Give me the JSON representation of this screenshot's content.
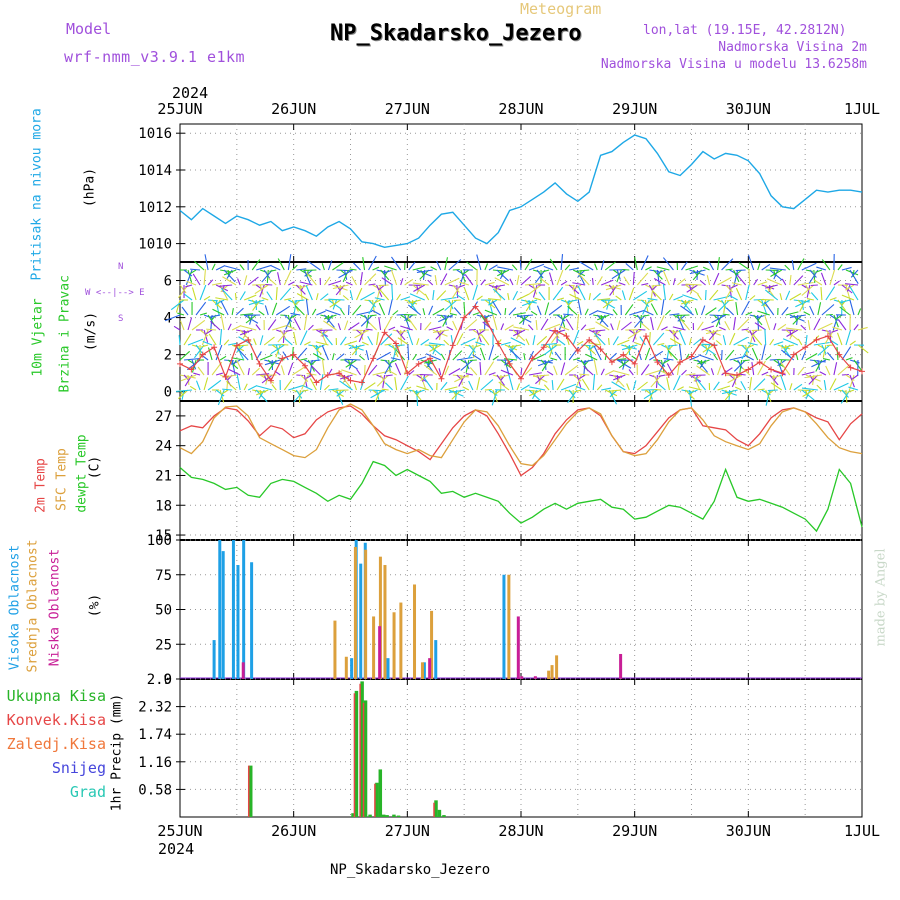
{
  "header": {
    "model_label": "Model",
    "model_name": "wrf-nmm_v3.9.1 e1km",
    "meteogram_label": "Meteogram",
    "station_title": "NP_Skadarsko_Jezero",
    "lonlat": "lon,lat (19.15E, 42.2812N)",
    "elevation": "Nadmorska Visina 2m",
    "model_elevation": "Nadmorska Visina u modelu 13.6258m",
    "year_top": "2024",
    "year_bottom": "2024",
    "footer_station": "NP_Skadarsko_Jezero",
    "credit": "made by Angel"
  },
  "colors": {
    "pressure": "#1ea8e6",
    "temp2m": "#e64646",
    "sfc_temp": "#dca03c",
    "dewpoint": "#28c828",
    "high_cloud": "#1ea0e6",
    "mid_cloud": "#dca03c",
    "low_cloud": "#c81e96",
    "total_precip": "#28b428",
    "conv_precip": "#e64646",
    "frozen": "#f0783c",
    "snow": "#4646dc",
    "hail": "#28c8b4",
    "purple_text": "#a050dc",
    "wind_speed": "#e64646"
  },
  "panel_labels": {
    "pressure": [
      "Pritisak na nivou mora",
      "(hPa)"
    ],
    "wind": [
      "10m Vjetar",
      "Brzina i Pravac",
      "(m/s)"
    ],
    "wind_compass": [
      "N",
      "W <--|--> E",
      "S"
    ],
    "temp": [
      "2m Temp",
      "SFC Temp",
      "dewpt Temp",
      "(C)"
    ],
    "cloud": [
      "Visoka Oblacnost",
      "Srednja Oblacnost",
      "Niska Oblacnost",
      "(%)"
    ],
    "precip_legend": [
      "Ukupna Kisa",
      "Konvek.Kisa",
      "Zaledj.Kisa",
      "Snijeg",
      "Grad"
    ],
    "precip_unit": "1hr Precip (mm)"
  },
  "chart_data": [
    {
      "type": "line",
      "name": "pressure",
      "x_ticks": [
        "25JUN",
        "26JUN",
        "27JUN",
        "28JUN",
        "29JUN",
        "30JUN",
        "1JUL"
      ],
      "ylabel": "(hPa)",
      "ylim": [
        1009,
        1016.5
      ],
      "y_ticks": [
        1010,
        1012,
        1014,
        1016
      ],
      "grid": true,
      "x": [
        0,
        0.1,
        0.2,
        0.3,
        0.4,
        0.5,
        0.6,
        0.7,
        0.8,
        0.9,
        1.0,
        1.1,
        1.2,
        1.3,
        1.4,
        1.5,
        1.6,
        1.7,
        1.8,
        1.9,
        2.0,
        2.1,
        2.2,
        2.3,
        2.4,
        2.5,
        2.6,
        2.7,
        2.8,
        2.9,
        3.0,
        3.1,
        3.2,
        3.3,
        3.4,
        3.5,
        3.6,
        3.7,
        3.8,
        3.9,
        4.0,
        4.1,
        4.2,
        4.3,
        4.4,
        4.5,
        4.6,
        4.7,
        4.8,
        4.9,
        5.0,
        5.1,
        5.2,
        5.3,
        5.4,
        5.5,
        5.6,
        5.7,
        5.8,
        5.9,
        6.0
      ],
      "values": [
        1011.8,
        1011.3,
        1011.9,
        1011.5,
        1011.1,
        1011.5,
        1011.3,
        1011.0,
        1011.2,
        1010.7,
        1010.9,
        1010.7,
        1010.4,
        1010.9,
        1011.2,
        1010.8,
        1010.1,
        1010.0,
        1009.8,
        1009.9,
        1010.0,
        1010.3,
        1011.0,
        1011.6,
        1011.7,
        1011.0,
        1010.3,
        1010.0,
        1010.6,
        1011.8,
        1012.0,
        1012.4,
        1012.8,
        1013.3,
        1012.7,
        1012.3,
        1012.8,
        1014.8,
        1015.0,
        1015.5,
        1015.9,
        1015.7,
        1014.9,
        1013.9,
        1013.7,
        1014.3,
        1015.0,
        1014.6,
        1014.9,
        1014.8,
        1014.5,
        1013.8,
        1012.6,
        1012.0,
        1011.9,
        1012.4,
        1012.9,
        1012.8,
        1012.9,
        1012.9,
        1012.8
      ]
    },
    {
      "type": "line",
      "name": "wind_speed",
      "ylabel": "(m/s)",
      "ylim": [
        -0.5,
        7
      ],
      "y_ticks": [
        0,
        2,
        4,
        6
      ],
      "grid": true,
      "x": [
        0,
        0.1,
        0.2,
        0.3,
        0.4,
        0.5,
        0.6,
        0.7,
        0.8,
        0.9,
        1.0,
        1.1,
        1.2,
        1.3,
        1.4,
        1.5,
        1.6,
        1.7,
        1.8,
        1.9,
        2.0,
        2.1,
        2.2,
        2.3,
        2.4,
        2.5,
        2.6,
        2.7,
        2.8,
        2.9,
        3.0,
        3.1,
        3.2,
        3.3,
        3.4,
        3.5,
        3.6,
        3.7,
        3.8,
        3.9,
        4.0,
        4.1,
        4.2,
        4.3,
        4.4,
        4.5,
        4.6,
        4.7,
        4.8,
        4.9,
        5.0,
        5.1,
        5.2,
        5.3,
        5.4,
        5.5,
        5.6,
        5.7,
        5.8,
        5.9,
        6.0
      ],
      "values": [
        1.5,
        1.2,
        2.0,
        2.4,
        0.8,
        2.5,
        2.8,
        1.5,
        0.6,
        1.8,
        2.0,
        1.4,
        0.5,
        0.9,
        1.0,
        0.6,
        0.5,
        1.8,
        3.2,
        2.6,
        1.0,
        1.5,
        1.8,
        0.7,
        2.5,
        4.0,
        4.6,
        3.8,
        2.6,
        1.5,
        0.7,
        1.8,
        2.4,
        3.3,
        3.0,
        2.2,
        2.8,
        2.3,
        1.6,
        2.0,
        1.5,
        3.0,
        1.6,
        0.9,
        1.6,
        1.9,
        2.8,
        2.5,
        1.0,
        0.9,
        1.2,
        1.6,
        1.2,
        1.0,
        2.0,
        2.4,
        2.8,
        3.0,
        2.0,
        1.3,
        1.1
      ]
    },
    {
      "type": "line",
      "name": "temperature",
      "ylabel": "(C)",
      "ylim": [
        14.5,
        28.5
      ],
      "y_ticks": [
        15,
        18,
        21,
        24,
        27
      ],
      "grid": true,
      "x": [
        0,
        0.1,
        0.2,
        0.3,
        0.4,
        0.5,
        0.6,
        0.7,
        0.8,
        0.9,
        1.0,
        1.1,
        1.2,
        1.3,
        1.4,
        1.5,
        1.6,
        1.7,
        1.8,
        1.9,
        2.0,
        2.1,
        2.2,
        2.3,
        2.4,
        2.5,
        2.6,
        2.7,
        2.8,
        2.9,
        3.0,
        3.1,
        3.2,
        3.3,
        3.4,
        3.5,
        3.6,
        3.7,
        3.8,
        3.9,
        4.0,
        4.1,
        4.2,
        4.3,
        4.4,
        4.5,
        4.6,
        4.7,
        4.8,
        4.9,
        5.0,
        5.1,
        5.2,
        5.3,
        5.4,
        5.5,
        5.6,
        5.7,
        5.8,
        5.9,
        6.0
      ],
      "series": [
        {
          "name": "2m Temp",
          "color_key": "temp2m",
          "values": [
            25.5,
            26.0,
            25.8,
            27.0,
            27.8,
            27.6,
            26.5,
            25.0,
            26.0,
            25.7,
            24.8,
            25.2,
            26.6,
            27.4,
            27.8,
            28.0,
            27.2,
            26.0,
            25.0,
            24.6,
            24.0,
            23.4,
            22.6,
            24.2,
            25.8,
            27.0,
            27.6,
            27.0,
            25.2,
            23.2,
            21.0,
            21.8,
            23.2,
            25.2,
            26.6,
            27.6,
            27.8,
            27.0,
            25.0,
            23.4,
            23.2,
            24.0,
            25.4,
            26.8,
            27.6,
            27.8,
            26.0,
            25.8,
            25.6,
            24.6,
            24.0,
            25.2,
            26.8,
            27.6,
            27.8,
            27.4,
            26.8,
            26.4,
            24.6,
            26.2,
            27.2
          ]
        },
        {
          "name": "SFC Temp",
          "color_key": "sfc_temp",
          "values": [
            23.8,
            23.2,
            24.4,
            26.8,
            27.9,
            28.0,
            27.0,
            24.8,
            24.2,
            23.6,
            23.0,
            22.8,
            23.6,
            25.8,
            27.6,
            28.2,
            27.6,
            26.0,
            24.2,
            23.6,
            23.2,
            23.6,
            23.0,
            22.8,
            24.6,
            26.4,
            27.6,
            27.4,
            26.0,
            24.0,
            22.2,
            22.0,
            23.0,
            24.6,
            26.2,
            27.4,
            27.8,
            27.2,
            25.0,
            23.4,
            23.0,
            23.2,
            24.6,
            26.4,
            27.6,
            27.8,
            26.6,
            25.0,
            24.4,
            24.0,
            23.6,
            24.2,
            26.0,
            27.4,
            27.8,
            27.4,
            26.2,
            24.8,
            23.8,
            23.4,
            23.2
          ]
        },
        {
          "name": "dewpt Temp",
          "color_key": "dewpoint",
          "values": [
            21.8,
            20.8,
            20.6,
            20.2,
            19.6,
            19.8,
            19.0,
            18.8,
            20.2,
            20.6,
            20.4,
            19.8,
            19.2,
            18.4,
            19.0,
            18.6,
            20.2,
            22.4,
            22.0,
            21.0,
            21.6,
            21.0,
            20.4,
            19.2,
            19.4,
            18.8,
            19.2,
            18.8,
            18.4,
            17.2,
            16.2,
            16.8,
            17.6,
            18.2,
            17.6,
            18.2,
            18.4,
            18.6,
            17.8,
            17.6,
            16.6,
            16.8,
            17.4,
            18.0,
            17.8,
            17.2,
            16.6,
            18.4,
            21.6,
            18.8,
            18.4,
            18.6,
            18.2,
            17.8,
            17.2,
            16.6,
            15.4,
            17.6,
            21.6,
            20.2,
            15.8
          ]
        }
      ]
    },
    {
      "type": "bar",
      "name": "cloud_cover",
      "ylabel": "(%)",
      "ylim": [
        0,
        100
      ],
      "y_ticks": [
        0,
        25,
        50,
        75,
        100
      ],
      "grid": true,
      "series": [
        {
          "name": "Visoka Oblacnost",
          "color_key": "high_cloud",
          "x": [
            0.3,
            0.35,
            0.38,
            0.47,
            0.51,
            0.56,
            0.63,
            1.51,
            1.55,
            1.59,
            1.63,
            1.83,
            2.15,
            2.25,
            2.85
          ],
          "values": [
            28,
            100,
            92,
            100,
            82,
            100,
            84,
            15,
            100,
            83,
            98,
            15,
            12,
            28,
            75
          ]
        },
        {
          "name": "Srednja Oblacnost",
          "color_key": "mid_cloud",
          "x": [
            1.35,
            1.45,
            1.53,
            1.62,
            1.69,
            1.75,
            1.79,
            1.87,
            1.93,
            2.05,
            2.12,
            2.2,
            2.88,
            3.23,
            3.26,
            3.3
          ],
          "values": [
            42,
            16,
            95,
            93,
            45,
            88,
            82,
            48,
            55,
            68,
            12,
            49,
            75,
            6,
            10,
            17
          ]
        },
        {
          "name": "Niska Oblacnost",
          "color_key": "low_cloud",
          "x": [
            0.53,
            1.73,
            2.17,
            2.95,
            2.98,
            3.1,
            3.45,
            3.68,
            3.85,
            4.05,
            4.3,
            4.62,
            5.1,
            5.4,
            5.85,
            6.0
          ],
          "values": [
            12,
            38,
            15,
            45,
            2,
            2,
            0,
            0,
            18,
            0,
            0,
            0,
            0,
            0,
            0,
            0
          ]
        }
      ]
    },
    {
      "type": "bar",
      "name": "precipitation",
      "ylabel": "1hr Precip (mm)",
      "ylim": [
        0,
        2.9
      ],
      "y_ticks": [
        0.58,
        1.16,
        1.74,
        2.32,
        2.9
      ],
      "grid": true,
      "series": [
        {
          "name": "Ukupna Kisa",
          "color_key": "total_precip",
          "x": [
            0.62,
            1.52,
            1.55,
            1.6,
            1.63,
            1.67,
            1.73,
            1.76,
            1.79,
            1.82,
            1.88,
            1.92,
            2.25,
            2.28,
            2.32
          ],
          "values": [
            1.08,
            0.08,
            2.65,
            2.85,
            2.45,
            0.05,
            0.72,
            1.0,
            0.05,
            0.04,
            0.05,
            0.03,
            0.35,
            0.15,
            0.04
          ]
        },
        {
          "name": "Konvek.Kisa",
          "color_key": "conv_precip",
          "x": [
            0.62,
            1.55,
            1.6,
            1.63,
            1.73,
            2.25
          ],
          "values": [
            1.08,
            2.6,
            2.8,
            2.4,
            0.7,
            0.3
          ]
        }
      ]
    }
  ]
}
